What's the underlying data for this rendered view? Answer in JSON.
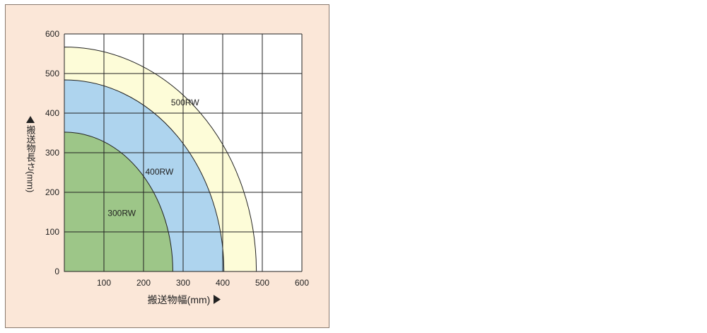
{
  "chart_data": {
    "type": "area",
    "xlabel": "搬送物幅(mm)",
    "ylabel": "搬送物長さ(mm)",
    "x_ticks": [
      "100",
      "200",
      "300",
      "400",
      "500",
      "600"
    ],
    "y_ticks": [
      "0",
      "100",
      "200",
      "300",
      "400",
      "500",
      "600"
    ],
    "xlim": [
      0,
      600
    ],
    "ylim": [
      0,
      600
    ],
    "grid": true,
    "series": [
      {
        "name": "500RW",
        "color": "#fdfcd8",
        "x_max": 485,
        "y_max": 567
      },
      {
        "name": "400RW",
        "color": "#aed4ee",
        "x_max": 403,
        "y_max": 484
      },
      {
        "name": "300RW",
        "color": "#9dc688",
        "x_max": 274,
        "y_max": 352
      }
    ]
  }
}
